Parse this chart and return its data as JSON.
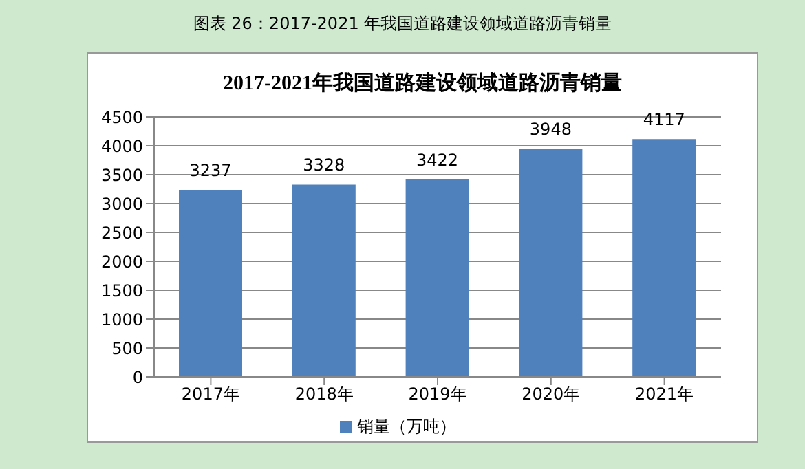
{
  "chart_data": {
    "type": "bar",
    "title": "2017-2021年我国道路建设领域道路沥青销量",
    "annotations": [
      "图表 26：2017-2021 年我国道路建设领域道路沥青销量"
    ],
    "categories": [
      "2017年",
      "2018年",
      "2019年",
      "2020年",
      "2021年"
    ],
    "series": [
      {
        "name": "销量（万吨）",
        "color": "#4f81bd",
        "values": [
          3237,
          3328,
          3422,
          3948,
          4117
        ]
      }
    ],
    "ylim": [
      0,
      4500
    ],
    "yticks": [
      0,
      500,
      1000,
      1500,
      2000,
      2500,
      3000,
      3500,
      4000,
      4500
    ],
    "grid": "y",
    "legend": "bottom",
    "data_labels": true
  }
}
